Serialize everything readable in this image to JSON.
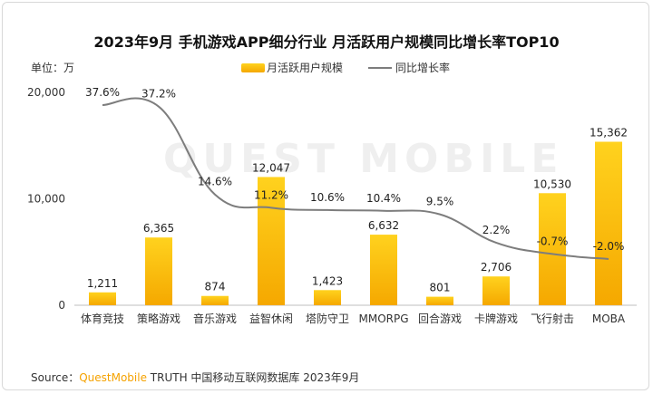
{
  "title": "2023年9月 手机游戏APP细分行业 月活跃用户规模同比增长率TOP10",
  "unit_label": "单位：万",
  "watermark": "QUEST MOBILE",
  "legend": {
    "bar_label": "月活跃用户规模",
    "line_label": "同比增长率"
  },
  "source": {
    "prefix": "Source：",
    "brand": "QuestMobile",
    "suffix": " TRUTH 中国移动互联网数据库 2023年9月"
  },
  "colors": {
    "bar_top": "#ffd21e",
    "bar_bottom": "#f5a800",
    "line": "#7d7d7d"
  },
  "chart_data": {
    "type": "bar",
    "title": "2023年9月 手机游戏APP细分行业 月活跃用户规模同比增长率TOP10",
    "categories": [
      "体育竞技",
      "策略游戏",
      "音乐游戏",
      "益智休闲",
      "塔防守卫",
      "MMORPG",
      "回合游戏",
      "卡牌游戏",
      "飞行射击",
      "MOBA"
    ],
    "series": [
      {
        "name": "月活跃用户规模",
        "type": "bar",
        "values": [
          1211,
          6365,
          874,
          12047,
          1423,
          6632,
          801,
          2706,
          10530,
          15362
        ],
        "labels": [
          "1,211",
          "6,365",
          "874",
          "12,047",
          "1,423",
          "6,632",
          "801",
          "2,706",
          "10,530",
          "15,362"
        ]
      },
      {
        "name": "同比增长率",
        "type": "line",
        "values": [
          37.6,
          37.2,
          14.6,
          11.2,
          10.6,
          10.4,
          9.5,
          2.2,
          -0.7,
          -2.0
        ],
        "labels": [
          "37.6%",
          "37.2%",
          "14.6%",
          "11.2%",
          "10.6%",
          "10.4%",
          "9.5%",
          "2.2%",
          "-0.7%",
          "-2.0%"
        ]
      }
    ],
    "y_ticks": [
      "0",
      "10,000",
      "20,000"
    ],
    "ylim": [
      0,
      20000
    ],
    "grid": false,
    "legend_position": "top-left"
  }
}
